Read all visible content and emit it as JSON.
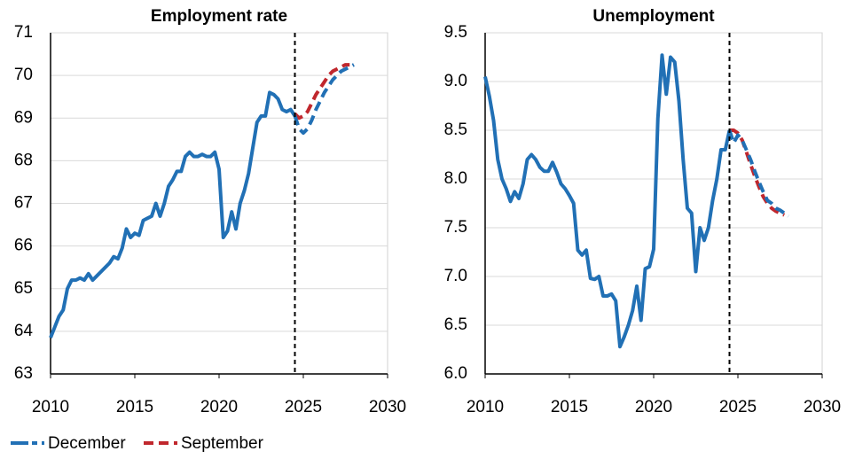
{
  "legend": [
    {
      "name": "December",
      "color": "#2170b5"
    },
    {
      "name": "September",
      "color": "#c0272d"
    }
  ],
  "chart_data": [
    {
      "type": "line",
      "title": "Employment rate",
      "x": [
        2010,
        2010.25,
        2010.5,
        2010.75,
        2011,
        2011.25,
        2011.5,
        2011.75,
        2012,
        2012.25,
        2012.5,
        2012.75,
        2013,
        2013.25,
        2013.5,
        2013.75,
        2014,
        2014.25,
        2014.5,
        2014.75,
        2015,
        2015.25,
        2015.5,
        2015.75,
        2016,
        2016.25,
        2016.5,
        2016.75,
        2017,
        2017.25,
        2017.5,
        2017.75,
        2018,
        2018.25,
        2018.5,
        2018.75,
        2019,
        2019.25,
        2019.5,
        2019.75,
        2020,
        2020.25,
        2020.5,
        2020.75,
        2021,
        2021.25,
        2021.5,
        2021.75,
        2022,
        2022.25,
        2022.5,
        2022.75,
        2023,
        2023.25,
        2023.5,
        2023.75,
        2024,
        2024.25,
        2024.5,
        2024.75,
        2025,
        2025.25,
        2025.5,
        2025.75,
        2026,
        2026.25,
        2026.5,
        2026.75,
        2027,
        2027.25,
        2027.5,
        2027.75,
        2028
      ],
      "series": [
        {
          "name": "December",
          "color": "#2170b5",
          "values": [
            63.85,
            64.1,
            64.35,
            64.5,
            65.0,
            65.2,
            65.2,
            65.25,
            65.2,
            65.35,
            65.2,
            65.3,
            65.4,
            65.5,
            65.6,
            65.75,
            65.7,
            65.95,
            66.4,
            66.2,
            66.3,
            66.25,
            66.6,
            66.65,
            66.7,
            67.0,
            66.7,
            67.0,
            67.4,
            67.55,
            67.75,
            67.75,
            68.1,
            68.2,
            68.1,
            68.1,
            68.15,
            68.1,
            68.1,
            68.2,
            67.8,
            66.2,
            66.35,
            66.8,
            66.4,
            67.0,
            67.3,
            67.7,
            68.3,
            68.9,
            69.05,
            69.05,
            69.6,
            69.55,
            69.45,
            69.2,
            69.15,
            69.2,
            69.05,
            68.75,
            68.65,
            68.75,
            68.95,
            69.2,
            69.4,
            69.6,
            69.75,
            69.9,
            70.0,
            70.1,
            70.15,
            70.2,
            70.25
          ]
        },
        {
          "name": "September",
          "color": "#c0272d",
          "values": [
            null,
            null,
            null,
            null,
            null,
            null,
            null,
            null,
            null,
            null,
            null,
            null,
            null,
            null,
            null,
            null,
            null,
            null,
            null,
            null,
            null,
            null,
            null,
            null,
            null,
            null,
            null,
            null,
            null,
            null,
            null,
            null,
            null,
            null,
            null,
            null,
            null,
            null,
            null,
            null,
            null,
            null,
            null,
            null,
            null,
            null,
            null,
            null,
            null,
            null,
            null,
            null,
            null,
            null,
            null,
            null,
            null,
            null,
            69.1,
            69.0,
            69.05,
            69.15,
            69.35,
            69.55,
            69.7,
            69.85,
            70.0,
            70.1,
            70.15,
            70.2,
            70.25,
            70.25,
            null
          ]
        }
      ],
      "forecast_start": 2024.5,
      "xlim": [
        2010,
        2030
      ],
      "xticks": [
        2010,
        2015,
        2020,
        2025,
        2030
      ],
      "ylim": [
        63,
        71
      ],
      "yticks": [
        63,
        64,
        65,
        66,
        67,
        68,
        69,
        70,
        71
      ],
      "grid": true
    },
    {
      "type": "line",
      "title": "Unemployment",
      "x": [
        2010,
        2010.25,
        2010.5,
        2010.75,
        2011,
        2011.25,
        2011.5,
        2011.75,
        2012,
        2012.25,
        2012.5,
        2012.75,
        2013,
        2013.25,
        2013.5,
        2013.75,
        2014,
        2014.25,
        2014.5,
        2014.75,
        2015,
        2015.25,
        2015.5,
        2015.75,
        2016,
        2016.25,
        2016.5,
        2016.75,
        2017,
        2017.25,
        2017.5,
        2017.75,
        2018,
        2018.25,
        2018.5,
        2018.75,
        2019,
        2019.25,
        2019.5,
        2019.75,
        2020,
        2020.25,
        2020.5,
        2020.75,
        2021,
        2021.25,
        2021.5,
        2021.75,
        2022,
        2022.25,
        2022.5,
        2022.75,
        2023,
        2023.25,
        2023.5,
        2023.75,
        2024,
        2024.25,
        2024.5,
        2024.75,
        2025,
        2025.25,
        2025.5,
        2025.75,
        2026,
        2026.25,
        2026.5,
        2026.75,
        2027,
        2027.25,
        2027.5,
        2027.75,
        2028
      ],
      "series": [
        {
          "name": "December",
          "color": "#2170b5",
          "values": [
            9.05,
            8.85,
            8.6,
            8.2,
            8.0,
            7.9,
            7.77,
            7.87,
            7.8,
            7.95,
            8.2,
            8.25,
            8.2,
            8.12,
            8.08,
            8.08,
            8.17,
            8.07,
            7.95,
            7.9,
            7.83,
            7.75,
            7.27,
            7.22,
            7.27,
            6.98,
            6.97,
            7.0,
            6.8,
            6.8,
            6.82,
            6.75,
            6.28,
            6.38,
            6.5,
            6.65,
            6.9,
            6.55,
            7.08,
            7.1,
            7.28,
            8.62,
            9.27,
            8.87,
            9.25,
            9.2,
            8.8,
            8.2,
            7.7,
            7.65,
            7.05,
            7.5,
            7.37,
            7.5,
            7.78,
            8.0,
            8.3,
            8.3,
            8.5,
            8.37,
            8.45,
            8.4,
            8.3,
            8.2,
            8.08,
            7.97,
            7.87,
            7.78,
            7.75,
            7.7,
            7.68,
            7.65,
            7.62
          ]
        },
        {
          "name": "September",
          "color": "#c0272d",
          "values": [
            null,
            null,
            null,
            null,
            null,
            null,
            null,
            null,
            null,
            null,
            null,
            null,
            null,
            null,
            null,
            null,
            null,
            null,
            null,
            null,
            null,
            null,
            null,
            null,
            null,
            null,
            null,
            null,
            null,
            null,
            null,
            null,
            null,
            null,
            null,
            null,
            null,
            null,
            null,
            null,
            null,
            null,
            null,
            null,
            null,
            null,
            null,
            null,
            null,
            null,
            null,
            null,
            null,
            null,
            null,
            null,
            null,
            null,
            8.5,
            8.5,
            8.47,
            8.4,
            8.28,
            8.15,
            8.03,
            7.92,
            7.82,
            7.75,
            7.7,
            7.67,
            7.65,
            7.63,
            null
          ]
        }
      ],
      "forecast_start": 2024.5,
      "xlim": [
        2010,
        2030
      ],
      "xticks": [
        2010,
        2015,
        2020,
        2025,
        2030
      ],
      "ylim": [
        6,
        9.5
      ],
      "yticks": [
        {
          "value": 6,
          "label": "6.0"
        },
        6.5,
        {
          "value": 7,
          "label": "7.0"
        },
        7.5,
        {
          "value": 8,
          "label": "8.0"
        },
        8.5,
        {
          "value": 9,
          "label": "9.0"
        },
        9.5
      ],
      "grid": true
    }
  ]
}
